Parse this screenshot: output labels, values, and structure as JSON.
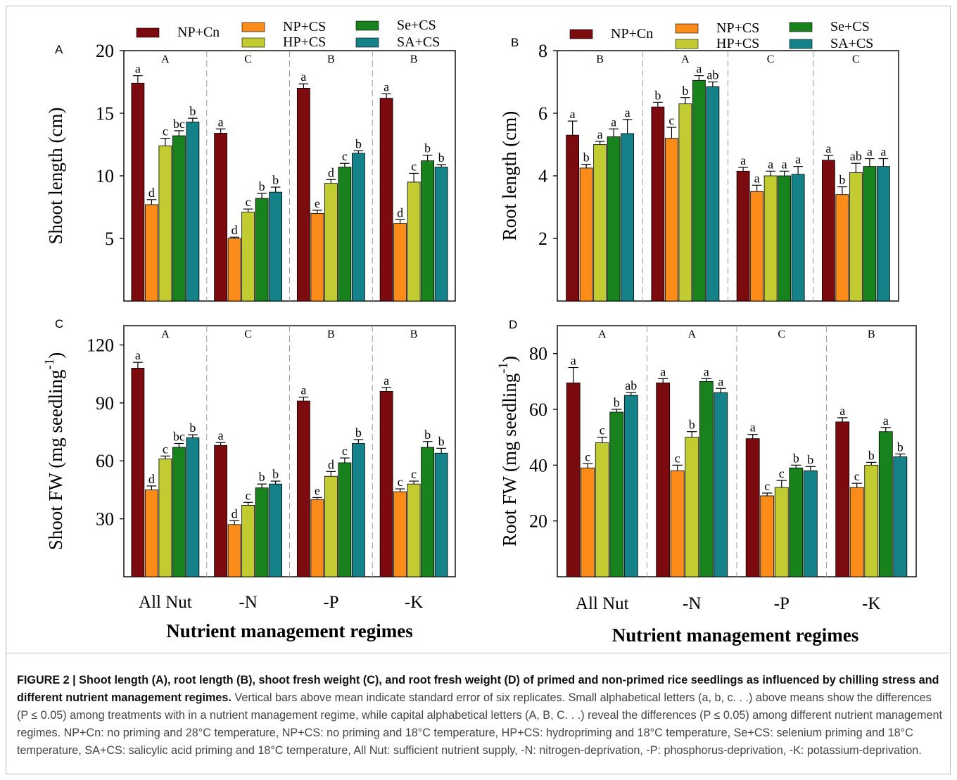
{
  "colors": {
    "NP+Cn": "#7b0b0f",
    "NP+CS": "#fb8c19",
    "HP+CS": "#c2cc30",
    "Se+CS": "#18831c",
    "SA+CS": "#158189"
  },
  "legend": [
    "NP+Cn",
    "NP+CS",
    "HP+CS",
    "Se+CS",
    "SA+CS"
  ],
  "chart_data": [
    {
      "panel": "A",
      "type": "bar",
      "ylabel": "Shoot length (cm)",
      "ylim": [
        0,
        20
      ],
      "yticks": [
        5,
        10,
        15,
        20
      ],
      "categories": [
        "All Nut",
        "-N",
        "-P",
        "-K"
      ],
      "show_xticklabels": false,
      "group_letters": [
        "A",
        "C",
        "B",
        "B"
      ],
      "series": [
        {
          "name": "NP+Cn",
          "values": [
            17.4,
            13.4,
            17.0,
            16.2
          ],
          "errors": [
            0.6,
            0.35,
            0.35,
            0.35
          ],
          "letters": [
            "a",
            "a",
            "a",
            "a"
          ]
        },
        {
          "name": "NP+CS",
          "values": [
            7.7,
            5.0,
            7.0,
            6.2
          ],
          "errors": [
            0.4,
            0.1,
            0.25,
            0.3
          ],
          "letters": [
            "d",
            "d",
            "e",
            "d"
          ]
        },
        {
          "name": "HP+CS",
          "values": [
            12.4,
            7.1,
            9.4,
            9.5
          ],
          "errors": [
            0.6,
            0.25,
            0.3,
            0.7
          ],
          "letters": [
            "c",
            "c",
            "d",
            "c"
          ]
        },
        {
          "name": "Se+CS",
          "values": [
            13.2,
            8.2,
            10.7,
            11.2
          ],
          "errors": [
            0.4,
            0.4,
            0.3,
            0.45
          ],
          "letters": [
            "bc",
            "b",
            "c",
            "b"
          ]
        },
        {
          "name": "SA+CS",
          "values": [
            14.3,
            8.7,
            11.8,
            10.7
          ],
          "errors": [
            0.3,
            0.4,
            0.2,
            0.2
          ],
          "letters": [
            "b",
            "b",
            "b",
            "b"
          ]
        }
      ]
    },
    {
      "panel": "B",
      "type": "bar",
      "ylabel": "Root length (cm)",
      "ylim": [
        0,
        8
      ],
      "yticks": [
        2,
        4,
        6,
        8
      ],
      "categories": [
        "All Nut",
        "-N",
        "-P",
        "-K"
      ],
      "show_xticklabels": false,
      "group_letters": [
        "B",
        "A",
        "C",
        "C"
      ],
      "series": [
        {
          "name": "NP+Cn",
          "values": [
            5.3,
            6.2,
            4.15,
            4.5
          ],
          "errors": [
            0.45,
            0.15,
            0.12,
            0.15
          ],
          "letters": [
            "a",
            "b",
            "a",
            "a"
          ]
        },
        {
          "name": "NP+CS",
          "values": [
            4.25,
            5.2,
            3.5,
            3.4
          ],
          "errors": [
            0.12,
            0.35,
            0.2,
            0.25
          ],
          "letters": [
            "b",
            "c",
            "a",
            "b"
          ]
        },
        {
          "name": "HP+CS",
          "values": [
            5.0,
            6.3,
            4.0,
            4.1
          ],
          "errors": [
            0.1,
            0.2,
            0.15,
            0.3
          ],
          "letters": [
            "a",
            "b",
            "a",
            "ab"
          ]
        },
        {
          "name": "Se+CS",
          "values": [
            5.25,
            7.05,
            4.0,
            4.3
          ],
          "errors": [
            0.25,
            0.15,
            0.15,
            0.25
          ],
          "letters": [
            "a",
            "a",
            "a",
            "a"
          ]
        },
        {
          "name": "SA+CS",
          "values": [
            5.35,
            6.85,
            4.05,
            4.3
          ],
          "errors": [
            0.45,
            0.15,
            0.25,
            0.25
          ],
          "letters": [
            "a",
            "ab",
            "a",
            "a"
          ]
        }
      ]
    },
    {
      "panel": "C",
      "type": "bar",
      "ylabel": "Shoot FW (mg seedling",
      "ylabel_sup": "-1",
      "ylabel_close": ")",
      "ylim": [
        0,
        130
      ],
      "yticks": [
        30,
        60,
        90,
        120
      ],
      "categories": [
        "All Nut",
        "-N",
        "-P",
        "-K"
      ],
      "show_xticklabels": true,
      "xlabel": "Nutrient management regimes",
      "group_letters": [
        "A",
        "C",
        "B",
        "B"
      ],
      "series": [
        {
          "name": "NP+Cn",
          "values": [
            108,
            68,
            91,
            96
          ],
          "errors": [
            3,
            1.5,
            2,
            2
          ],
          "letters": [
            "a",
            "a",
            "a",
            "a"
          ]
        },
        {
          "name": "NP+CS",
          "values": [
            45,
            27,
            40,
            44
          ],
          "errors": [
            2,
            2,
            1,
            1.5
          ],
          "letters": [
            "d",
            "d",
            "e",
            "c"
          ]
        },
        {
          "name": "HP+CS",
          "values": [
            61,
            37,
            52,
            48
          ],
          "errors": [
            1.5,
            1.5,
            2.5,
            1.5
          ],
          "letters": [
            "c",
            "c",
            "d",
            "c"
          ]
        },
        {
          "name": "Se+CS",
          "values": [
            67,
            46,
            59,
            67
          ],
          "errors": [
            2,
            2,
            2.5,
            3
          ],
          "letters": [
            "bc",
            "b",
            "c",
            "b"
          ]
        },
        {
          "name": "SA+CS",
          "values": [
            72,
            48,
            69,
            64
          ],
          "errors": [
            1.5,
            1.5,
            2,
            2.5
          ],
          "letters": [
            "b",
            "b",
            "b",
            "b"
          ]
        }
      ]
    },
    {
      "panel": "D",
      "type": "bar",
      "ylabel": "Root FW (mg seedling",
      "ylabel_sup": "-1",
      "ylabel_close": ")",
      "ylim": [
        0,
        90
      ],
      "yticks": [
        20,
        40,
        60,
        80
      ],
      "categories": [
        "All Nut",
        "-N",
        "-P",
        "-K"
      ],
      "show_xticklabels": true,
      "xlabel": "Nutrient management regimes",
      "group_letters": [
        "A",
        "A",
        "C",
        "B"
      ],
      "series": [
        {
          "name": "NP+Cn",
          "values": [
            69.5,
            69.5,
            49.5,
            55.5
          ],
          "errors": [
            5.5,
            1.5,
            1.5,
            1.5
          ],
          "letters": [
            "a",
            "a",
            "a",
            "a"
          ]
        },
        {
          "name": "NP+CS",
          "values": [
            39,
            38,
            29,
            32
          ],
          "errors": [
            1.5,
            2,
            1,
            1.5
          ],
          "letters": [
            "c",
            "c",
            "c",
            "c"
          ]
        },
        {
          "name": "HP+CS",
          "values": [
            48,
            50,
            32,
            40
          ],
          "errors": [
            2,
            2,
            2.5,
            1
          ],
          "letters": [
            "c",
            "b",
            "c",
            "b"
          ]
        },
        {
          "name": "Se+CS",
          "values": [
            59,
            70,
            39,
            52
          ],
          "errors": [
            1,
            1,
            1,
            1.5
          ],
          "letters": [
            "b",
            "a",
            "b",
            "a"
          ]
        },
        {
          "name": "SA+CS",
          "values": [
            65,
            66,
            38,
            43
          ],
          "errors": [
            1,
            1.5,
            1.5,
            1
          ],
          "letters": [
            "ab",
            "a",
            "b",
            "b"
          ]
        }
      ]
    }
  ],
  "caption": {
    "bold": "FIGURE 2 | Shoot length (A), root length (B), shoot fresh weight (C), and root fresh weight (D) of primed and non-primed rice seedlings as influenced by chilling stress and different nutrient management regimes.",
    "text": " Vertical bars above mean indicate standard error of six replicates. Small alphabetical letters (a, b, c. . .) above means show the differences (P ≤ 0.05) among treatments with in a nutrient management regime, while capital alphabetical letters (A, B, C. . .) reveal the differences (P ≤ 0.05) among different nutrient management regimes. NP+Cn: no priming and 28°C temperature, NP+CS: no priming and 18°C temperature, HP+CS: hydropriming and 18°C temperature, Se+CS: selenium priming and 18°C temperature, SA+CS: salicylic acid priming and 18°C temperature, All Nut: sufficient nutrient supply, -N: nitrogen-deprivation, -P: phosphorus-deprivation, -K: potassium-deprivation."
  }
}
